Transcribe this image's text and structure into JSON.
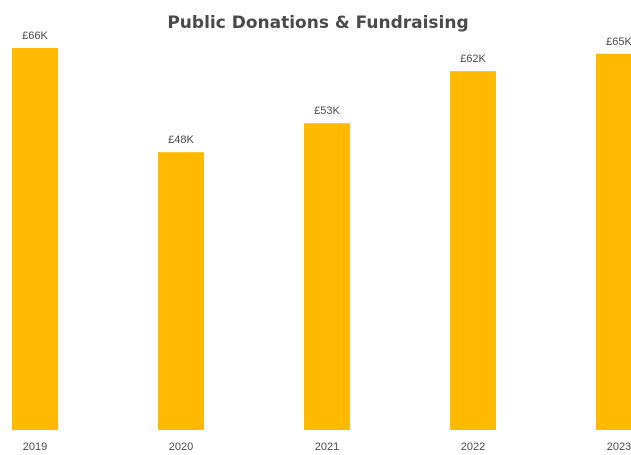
{
  "chart_data": {
    "type": "bar",
    "title": "Public Donations & Fundraising",
    "xlabel": "",
    "ylabel": "",
    "categories": [
      "2019",
      "2020",
      "2021",
      "2022",
      "2023"
    ],
    "values": [
      66,
      48,
      53,
      62,
      65
    ],
    "value_labels": [
      "£66K",
      "£48K",
      "£53K",
      "£62K",
      "£65K"
    ],
    "unit": "£K",
    "ylim": [
      0,
      66
    ],
    "grid": false,
    "legend": "none",
    "colors": {
      "bar": "#FFBA00",
      "text": "#4a4a4a"
    }
  }
}
